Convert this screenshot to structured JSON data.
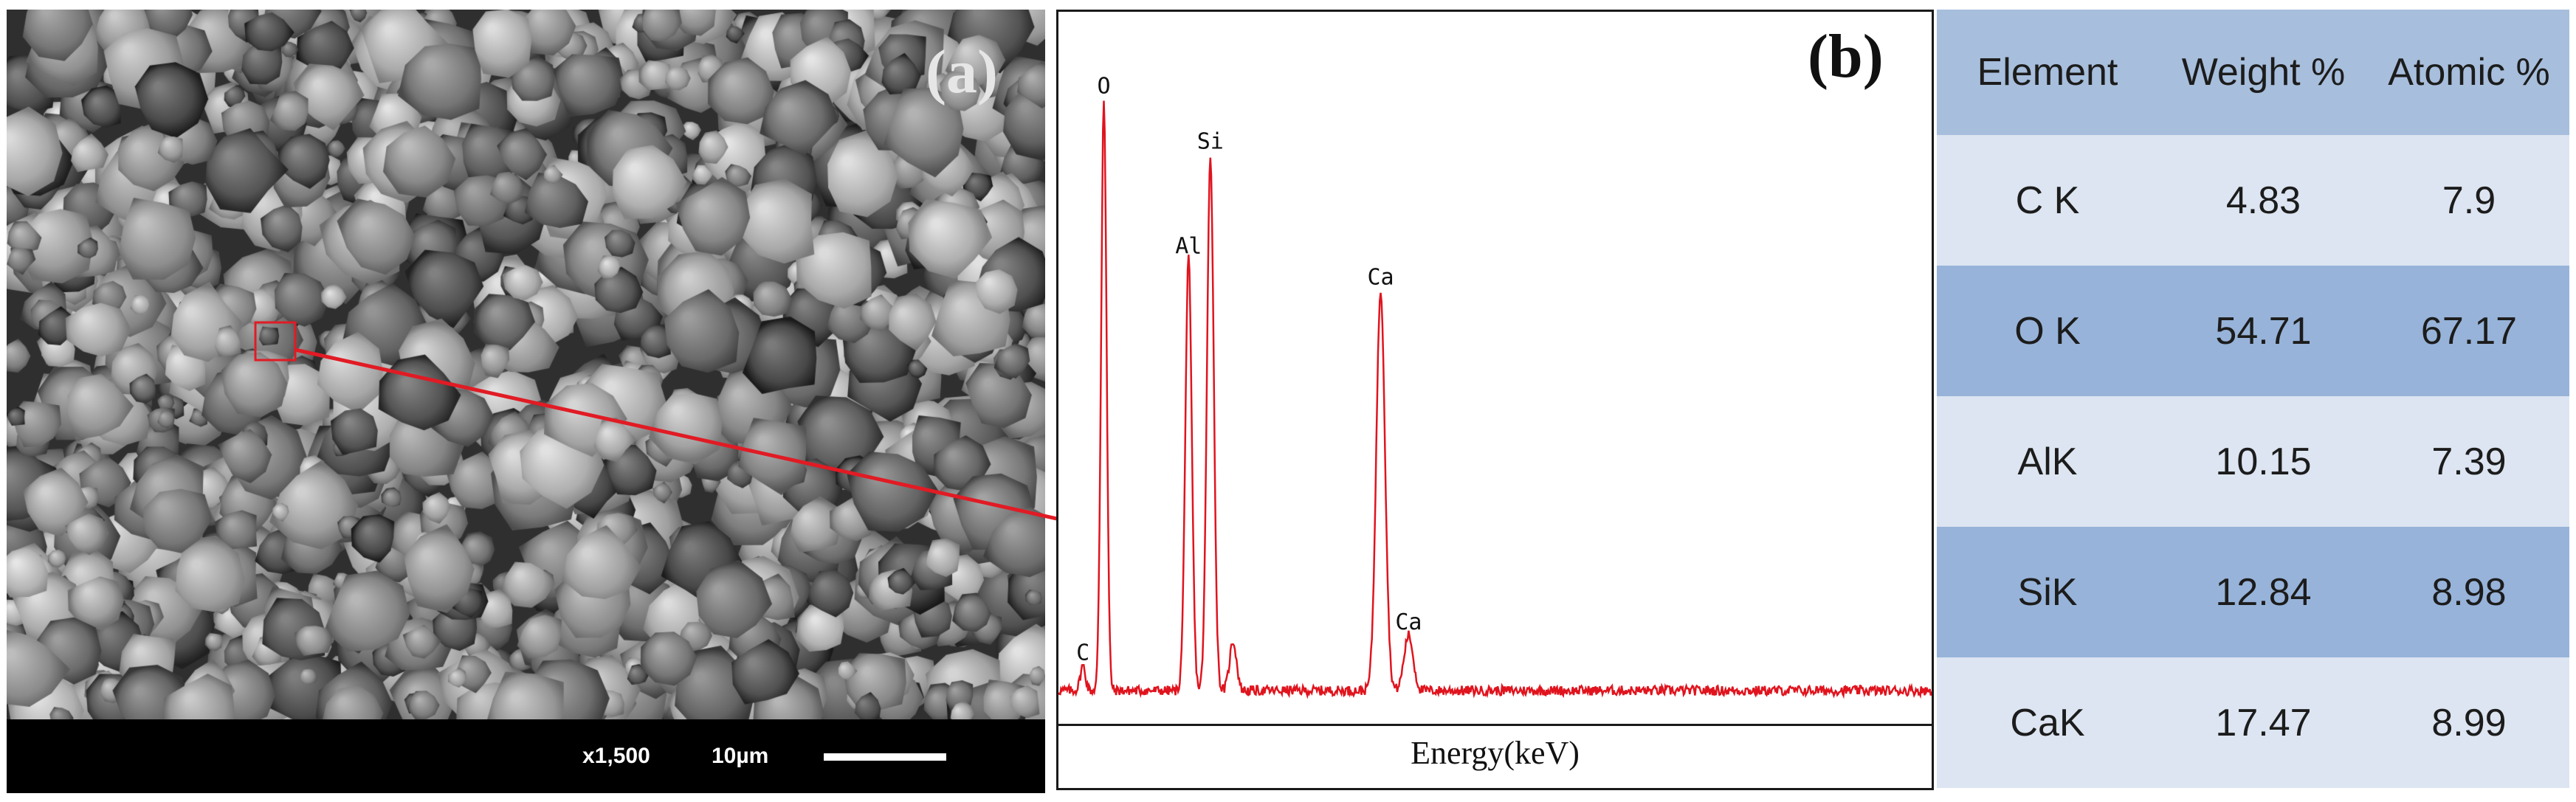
{
  "panel_a": {
    "label": "(a)",
    "magnification": "x1,500",
    "scale_bar_text": "10µm"
  },
  "panel_b": {
    "label": "(b)",
    "xlabel": "Energy(keV)"
  },
  "chart_data": {
    "type": "line",
    "title": "",
    "xlabel": "Energy(keV)",
    "ylabel": "",
    "grid": false,
    "xlim": [
      0,
      10
    ],
    "ylim": [
      0,
      100
    ],
    "series": [
      {
        "color": "#e0141e",
        "peaks": [
          {
            "x": 0.28,
            "height": 4
          },
          {
            "x": 0.52,
            "height": 96
          },
          {
            "x": 1.49,
            "height": 70
          },
          {
            "x": 1.74,
            "height": 87
          },
          {
            "x": 2.0,
            "height": 8
          },
          {
            "x": 3.69,
            "height": 65
          },
          {
            "x": 4.01,
            "height": 9
          }
        ]
      }
    ],
    "peak_labels": [
      {
        "text": "C",
        "x": 0.28
      },
      {
        "text": "O",
        "x": 0.52
      },
      {
        "text": "Al",
        "x": 1.49
      },
      {
        "text": "Si",
        "x": 1.74
      },
      {
        "text": "Ca",
        "x": 3.69
      },
      {
        "text": "Ca",
        "x": 4.01
      }
    ]
  },
  "table": {
    "headers": [
      "Element",
      "Weight %",
      "Atomic %"
    ],
    "rows": [
      [
        "C K",
        "4.83",
        "7.9"
      ],
      [
        "O K",
        "54.71",
        "67.17"
      ],
      [
        "AlK",
        "10.15",
        "7.39"
      ],
      [
        "SiK",
        "12.84",
        "8.98"
      ],
      [
        "CaK",
        "17.47",
        "8.99"
      ]
    ],
    "colors": {
      "header": "#a7bedc",
      "odd": "#dce5f1",
      "even": "#97b3d9"
    }
  },
  "colors": {
    "callout": "#e11b24",
    "spectrum": "#e0141e"
  }
}
